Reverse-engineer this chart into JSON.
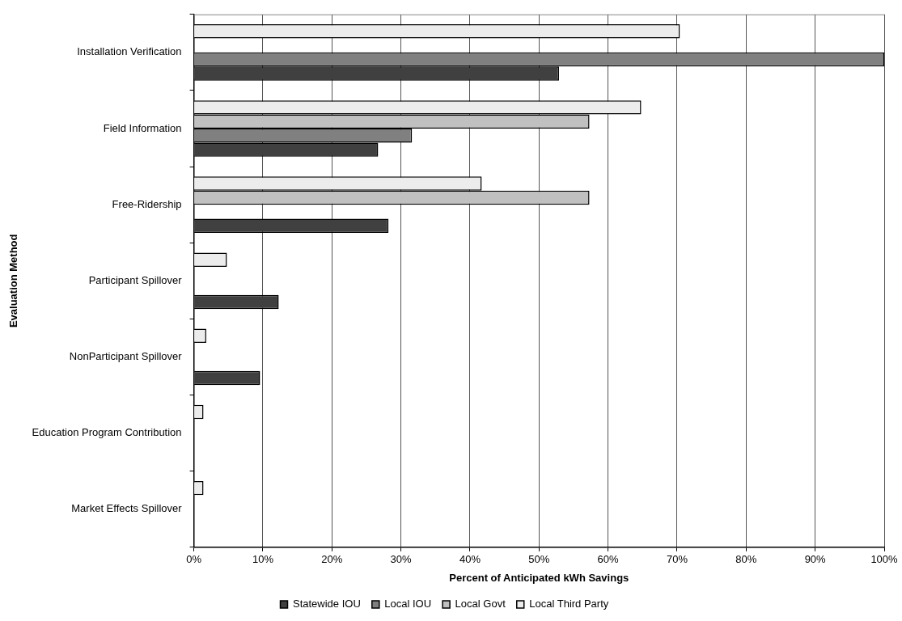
{
  "chart_data": {
    "type": "bar",
    "orientation": "horizontal",
    "xlabel": "Percent of Anticipated kWh Savings",
    "ylabel": "Evaluation Method",
    "categories": [
      "Installation Verification",
      "Field Information",
      "Free-Ridership",
      "Participant Spillover",
      "NonParticipant Spillover",
      "Education Program Contribution",
      "Market Effects Spillover"
    ],
    "series": [
      {
        "name": "Statewide IOU",
        "color": "#404040",
        "values": [
          52.9,
          26.7,
          28.2,
          12.3,
          9.6,
          null,
          null
        ]
      },
      {
        "name": "Local IOU",
        "color": "#808080",
        "values": [
          100,
          31.6,
          null,
          null,
          null,
          null,
          null
        ]
      },
      {
        "name": "Local Govt",
        "color": "#c0c0c0",
        "values": [
          null,
          57.3,
          57.3,
          null,
          null,
          null,
          null
        ]
      },
      {
        "name": "Local Third Party",
        "color": "#ececec",
        "values": [
          70.4,
          64.8,
          41.7,
          4.8,
          1.8,
          1.4,
          1.4
        ]
      }
    ],
    "xlim": [
      0,
      100
    ],
    "xticks": [
      {
        "value": 0,
        "label": "0%"
      },
      {
        "value": 10,
        "label": "10%"
      },
      {
        "value": 20,
        "label": "20%"
      },
      {
        "value": 30,
        "label": "30%"
      },
      {
        "value": 40,
        "label": "40%"
      },
      {
        "value": 50,
        "label": "50%"
      },
      {
        "value": 60,
        "label": "60%"
      },
      {
        "value": 70,
        "label": "70%"
      },
      {
        "value": 80,
        "label": "80%"
      },
      {
        "value": 90,
        "label": "90%"
      },
      {
        "value": 100,
        "label": "100%"
      }
    ],
    "grid": "x",
    "legend": "bottom"
  }
}
